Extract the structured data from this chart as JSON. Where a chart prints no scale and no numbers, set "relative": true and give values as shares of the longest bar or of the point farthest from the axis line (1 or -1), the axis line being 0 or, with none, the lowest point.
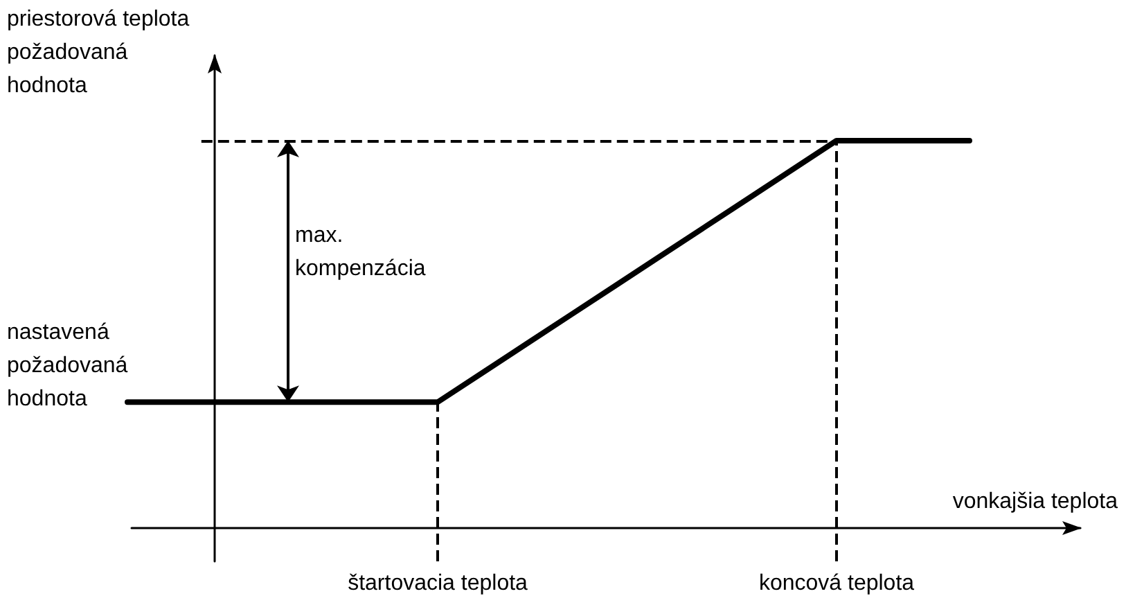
{
  "chart_data": {
    "type": "line",
    "relative": true,
    "ylabel": "priestorová teplota\npožadovaná\nhodnota",
    "xlabel": "vonkajšia teplota",
    "categories": [
      null,
      null,
      null,
      null,
      null,
      null,
      null,
      null,
      null,
      null,
      null,
      null,
      null,
      null,
      null,
      null,
      null,
      null,
      null,
      null
    ],
    "series": [
      {
        "color": "#000000",
        "values": [
          0.325,
          0.325,
          0.325,
          0.325,
          0.325,
          0.325,
          0.325,
          0.325,
          0.4,
          0.475,
          0.55,
          0.625,
          0.7,
          0.775,
          0.85,
          0.925,
          1,
          1,
          1,
          1
        ]
      }
    ],
    "ref_lines": [
      {
        "axis": "x",
        "label": "štartovacia teplota",
        "line_style": "dashed"
      },
      {
        "axis": "x",
        "label": "koncová teplota",
        "line_style": "dashed"
      },
      {
        "axis": "y",
        "value": 1,
        "line_style": "dashed"
      }
    ],
    "annotations": [
      "max.\nkompenzácia",
      "nastavená\npožadovaná\nhodnota"
    ],
    "grid": false,
    "marker": "none",
    "line_style": "solid"
  }
}
